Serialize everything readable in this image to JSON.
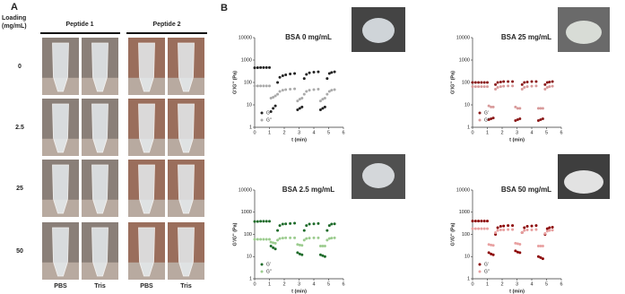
{
  "panel_a": {
    "label": "A",
    "loading_label": [
      "Loading",
      "(mg/mL)"
    ],
    "groups": [
      "Peptide 1",
      "Peptide 2"
    ],
    "rows": [
      "0",
      "2.5",
      "25",
      "50"
    ],
    "columns": [
      "PBS",
      "Tris",
      "PBS",
      "Tris"
    ]
  },
  "panel_b": {
    "label": "B"
  },
  "chart_data": [
    {
      "type": "scatter",
      "title": "BSA 0 mg/mL",
      "xlabel": "t (min)",
      "ylabel": "G'/G'' (Pa)",
      "log_y": true,
      "xlim": [
        0,
        6
      ],
      "xticks": [
        0,
        1,
        2,
        3,
        4,
        5,
        6
      ],
      "ylim": [
        1,
        10000
      ],
      "yticks": [
        1,
        10,
        100,
        1000,
        10000
      ],
      "x": [
        0,
        0.2,
        0.4,
        0.6,
        0.8,
        1.0,
        1.1,
        1.25,
        1.4,
        1.55,
        1.7,
        1.9,
        2.1,
        2.4,
        2.7,
        2.9,
        3.05,
        3.2,
        3.35,
        3.5,
        3.7,
        4.0,
        4.3,
        4.45,
        4.6,
        4.75,
        4.9,
        5.05,
        5.2,
        5.4
      ],
      "series": [
        {
          "name": "G'",
          "color": "#222222",
          "values": [
            450,
            455,
            460,
            460,
            460,
            460,
            5,
            7,
            9,
            100,
            170,
            200,
            220,
            240,
            250,
            6,
            7,
            8,
            150,
            230,
            270,
            290,
            300,
            6,
            7,
            8,
            150,
            250,
            280,
            300
          ]
        },
        {
          "name": "G''",
          "color": "#aaaaaa",
          "values": [
            70,
            70,
            70,
            70,
            70,
            70,
            20,
            22,
            25,
            30,
            40,
            45,
            48,
            50,
            52,
            15,
            18,
            20,
            30,
            40,
            45,
            48,
            50,
            15,
            18,
            20,
            30,
            40,
            45,
            48
          ]
        }
      ]
    },
    {
      "type": "scatter",
      "title": "BSA 25 mg/mL",
      "xlabel": "t (min)",
      "ylabel": "G'/G'' (Pa)",
      "log_y": true,
      "xlim": [
        0,
        6
      ],
      "xticks": [
        0,
        1,
        2,
        3,
        4,
        5,
        6
      ],
      "ylim": [
        1,
        10000
      ],
      "yticks": [
        1,
        10,
        100,
        1000,
        10000
      ],
      "x": [
        0,
        0.2,
        0.4,
        0.6,
        0.8,
        1.0,
        1.1,
        1.25,
        1.4,
        1.55,
        1.7,
        1.9,
        2.1,
        2.4,
        2.7,
        2.9,
        3.05,
        3.2,
        3.35,
        3.5,
        3.7,
        4.0,
        4.3,
        4.45,
        4.6,
        4.75,
        4.9,
        5.05,
        5.2,
        5.4
      ],
      "series": [
        {
          "name": "G'",
          "color": "#8b1a1a",
          "values": [
            100,
            100,
            100,
            100,
            100,
            100,
            2.2,
            2.4,
            2.6,
            80,
            100,
            105,
            110,
            110,
            110,
            2.0,
            2.2,
            2.4,
            80,
            100,
            105,
            110,
            110,
            2,
            2.2,
            2.4,
            80,
            100,
            105,
            110
          ]
        },
        {
          "name": "G''",
          "color": "#d89a9a",
          "values": [
            65,
            65,
            65,
            65,
            65,
            65,
            9,
            8,
            8,
            50,
            60,
            65,
            68,
            70,
            70,
            8,
            7,
            7,
            50,
            60,
            65,
            68,
            70,
            7,
            7,
            7,
            50,
            60,
            65,
            68
          ]
        }
      ]
    },
    {
      "type": "scatter",
      "title": "BSA 2.5 mg/mL",
      "xlabel": "t (min)",
      "ylabel": "G'/G'' (Pa)",
      "log_y": true,
      "xlim": [
        0,
        6
      ],
      "xticks": [
        0,
        1,
        2,
        3,
        4,
        5,
        6
      ],
      "ylim": [
        1,
        10000
      ],
      "yticks": [
        1,
        10,
        100,
        1000,
        10000
      ],
      "x": [
        0,
        0.2,
        0.4,
        0.6,
        0.8,
        1.0,
        1.1,
        1.25,
        1.4,
        1.55,
        1.7,
        1.9,
        2.1,
        2.4,
        2.7,
        2.9,
        3.05,
        3.2,
        3.35,
        3.5,
        3.7,
        4.0,
        4.3,
        4.45,
        4.6,
        4.75,
        4.9,
        5.05,
        5.2,
        5.4
      ],
      "series": [
        {
          "name": "G'",
          "color": "#1e6b2a",
          "values": [
            380,
            380,
            390,
            390,
            390,
            390,
            30,
            25,
            22,
            150,
            250,
            290,
            300,
            310,
            320,
            15,
            13,
            12,
            150,
            250,
            290,
            300,
            310,
            12,
            11,
            10,
            150,
            250,
            290,
            300
          ]
        },
        {
          "name": "G''",
          "color": "#9ccc8f",
          "values": [
            60,
            60,
            60,
            60,
            60,
            60,
            45,
            42,
            40,
            55,
            65,
            68,
            70,
            70,
            70,
            35,
            33,
            32,
            55,
            65,
            68,
            70,
            70,
            30,
            30,
            30,
            55,
            65,
            68,
            70
          ]
        }
      ]
    },
    {
      "type": "scatter",
      "title": "BSA 50 mg/mL",
      "xlabel": "t (min)",
      "ylabel": "G'/G'' (Pa)",
      "log_y": true,
      "xlim": [
        0,
        6
      ],
      "xticks": [
        0,
        1,
        2,
        3,
        4,
        5,
        6
      ],
      "ylim": [
        1,
        10000
      ],
      "yticks": [
        1,
        10,
        100,
        1000,
        10000
      ],
      "x": [
        0,
        0.2,
        0.4,
        0.6,
        0.8,
        1.0,
        1.1,
        1.25,
        1.4,
        1.55,
        1.7,
        1.9,
        2.1,
        2.4,
        2.7,
        2.9,
        3.05,
        3.2,
        3.35,
        3.5,
        3.7,
        4.0,
        4.3,
        4.45,
        4.6,
        4.75,
        4.9,
        5.05,
        5.2,
        5.4
      ],
      "series": [
        {
          "name": "G'",
          "color": "#8b0000",
          "values": [
            400,
            400,
            400,
            400,
            400,
            400,
            15,
            13,
            12,
            100,
            200,
            230,
            240,
            250,
            250,
            18,
            16,
            15,
            120,
            200,
            230,
            240,
            250,
            10,
            9,
            8,
            100,
            180,
            200,
            210
          ]
        },
        {
          "name": "G''",
          "color": "#e8a0a0",
          "values": [
            180,
            180,
            180,
            180,
            180,
            180,
            35,
            33,
            32,
            120,
            150,
            160,
            160,
            165,
            165,
            40,
            38,
            36,
            120,
            150,
            160,
            160,
            165,
            30,
            30,
            30,
            110,
            140,
            150,
            155
          ]
        }
      ]
    }
  ]
}
